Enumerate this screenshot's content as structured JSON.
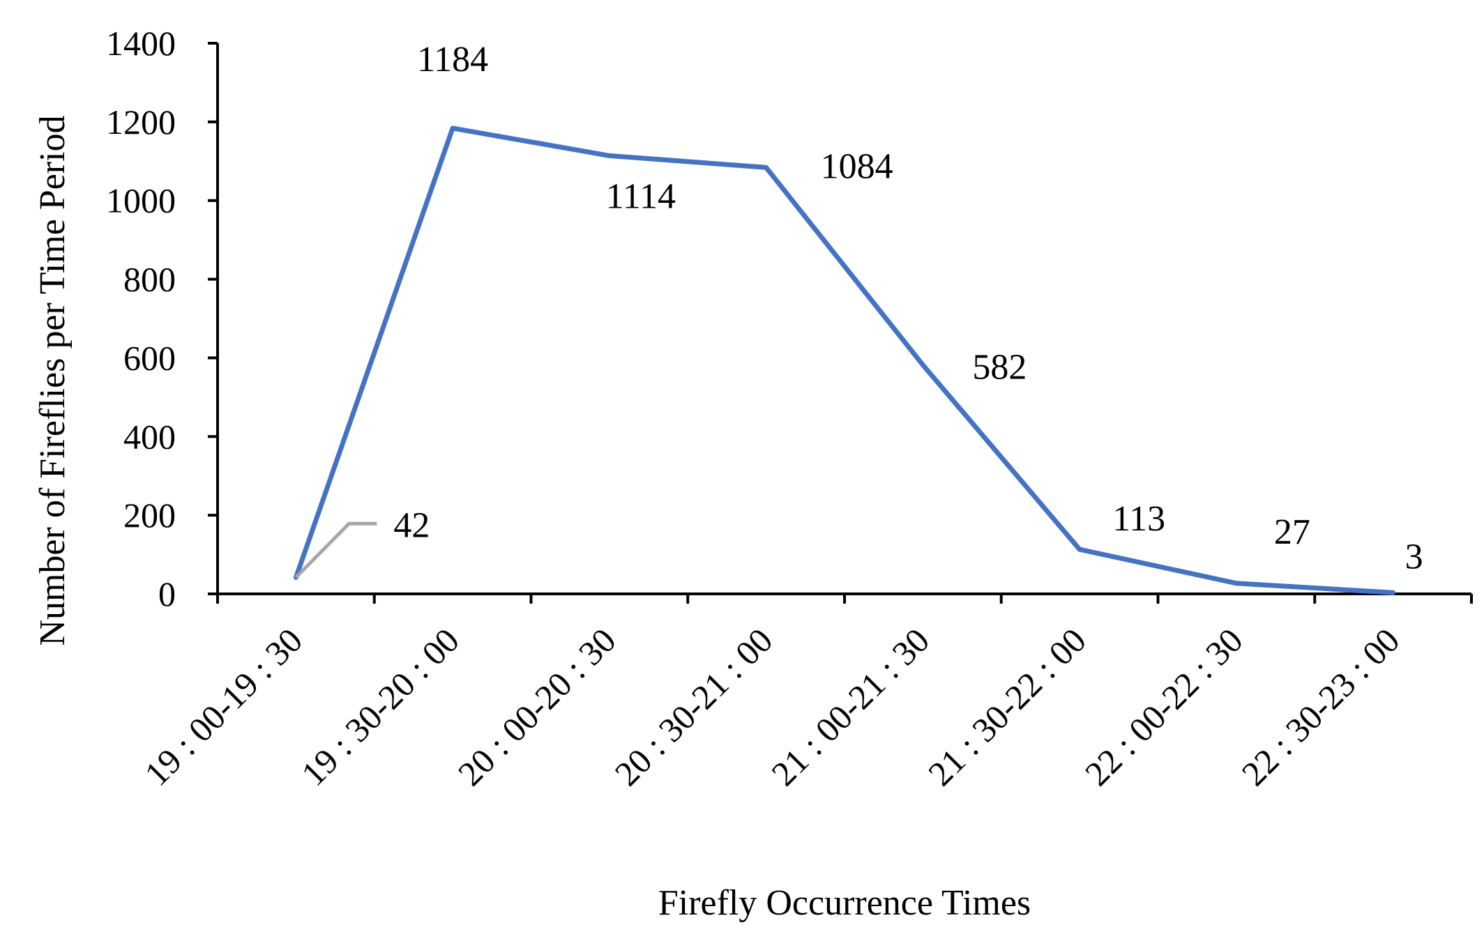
{
  "chart_data": {
    "type": "line",
    "title": "",
    "xlabel": "Firefly Occurrence Times",
    "ylabel": "Number of Fireflies per Time Period",
    "categories": [
      "19 : 00-19 : 30",
      "19 : 30-20 : 00",
      "20 : 00-20 : 30",
      "20 : 30-21 : 00",
      "21 : 00-21 : 30",
      "21 : 30-22 : 00",
      "22 : 00-22 : 30",
      "22 : 30-23 : 00"
    ],
    "series": [
      {
        "values": [
          42,
          1184,
          1114,
          1084,
          582,
          113,
          27,
          3
        ],
        "color": "#4472C4"
      }
    ],
    "data_labels": [
      "42",
      "1184",
      "1114",
      "1084",
      "582",
      "113",
      "27",
      "3"
    ],
    "leader_line_color": "#A6A6A6",
    "y_ticks": [
      "0",
      "200",
      "400",
      "600",
      "800",
      "1000",
      "1200",
      "1400"
    ],
    "ylim": [
      0,
      1400
    ],
    "grid": false,
    "legend": "none"
  }
}
